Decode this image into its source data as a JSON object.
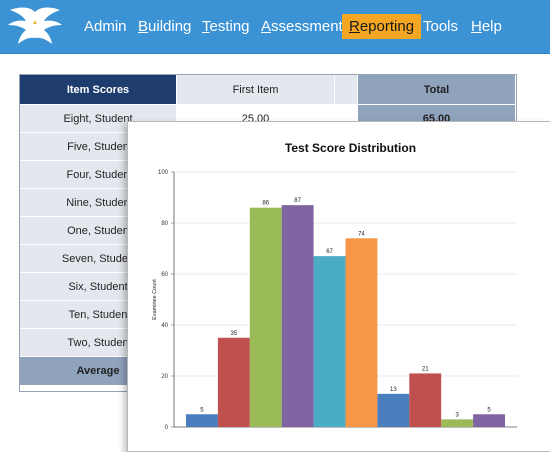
{
  "nav": {
    "items": [
      {
        "label": "Admin",
        "mnemonic": ""
      },
      {
        "label": "Building",
        "mnemonic": "B"
      },
      {
        "label": "Testing",
        "mnemonic": "T"
      },
      {
        "label": "Assessment",
        "mnemonic": "A"
      },
      {
        "label": "Reporting",
        "mnemonic": "R"
      },
      {
        "label": "Tools",
        "mnemonic": ""
      },
      {
        "label": "Help",
        "mnemonic": "H"
      }
    ],
    "active": "Reporting",
    "active_color": "#f5a623",
    "bar_color": "#3b93d6",
    "logo": "eagle-logo"
  },
  "table": {
    "headers": {
      "item_scores": "Item Scores",
      "first_item": "First Item",
      "total": "Total"
    },
    "rows": [
      {
        "name": "Eight, Student",
        "first_item": "25.00",
        "total": "65.00"
      },
      {
        "name": "Five, Studen",
        "first_item": "",
        "total": ""
      },
      {
        "name": "Four, Studen",
        "first_item": "",
        "total": ""
      },
      {
        "name": "Nine, Studen",
        "first_item": "",
        "total": ""
      },
      {
        "name": "One, Studen",
        "first_item": "",
        "total": ""
      },
      {
        "name": "Seven, Studen",
        "first_item": "",
        "total": ""
      },
      {
        "name": "Six, Student",
        "first_item": "",
        "total": ""
      },
      {
        "name": "Ten, Studen",
        "first_item": "",
        "total": ""
      },
      {
        "name": "Two, Studen",
        "first_item": "",
        "total": ""
      }
    ],
    "average_label": "Average"
  },
  "chart_data": {
    "type": "bar",
    "title": "Test Score Distribution",
    "ylabel": "Examinee Count",
    "xlabel": "",
    "ylim": [
      0,
      100
    ],
    "yticks": [
      0,
      20,
      40,
      60,
      80,
      100
    ],
    "grid": true,
    "values": [
      5,
      35,
      86,
      87,
      67,
      74,
      13,
      21,
      3,
      5
    ],
    "colors": [
      "#4a7ebf",
      "#c0504d",
      "#9bbb59",
      "#8064a2",
      "#4bacc6",
      "#f79646",
      "#4a7ebf",
      "#c0504d",
      "#9bbb59",
      "#8064a2"
    ]
  }
}
